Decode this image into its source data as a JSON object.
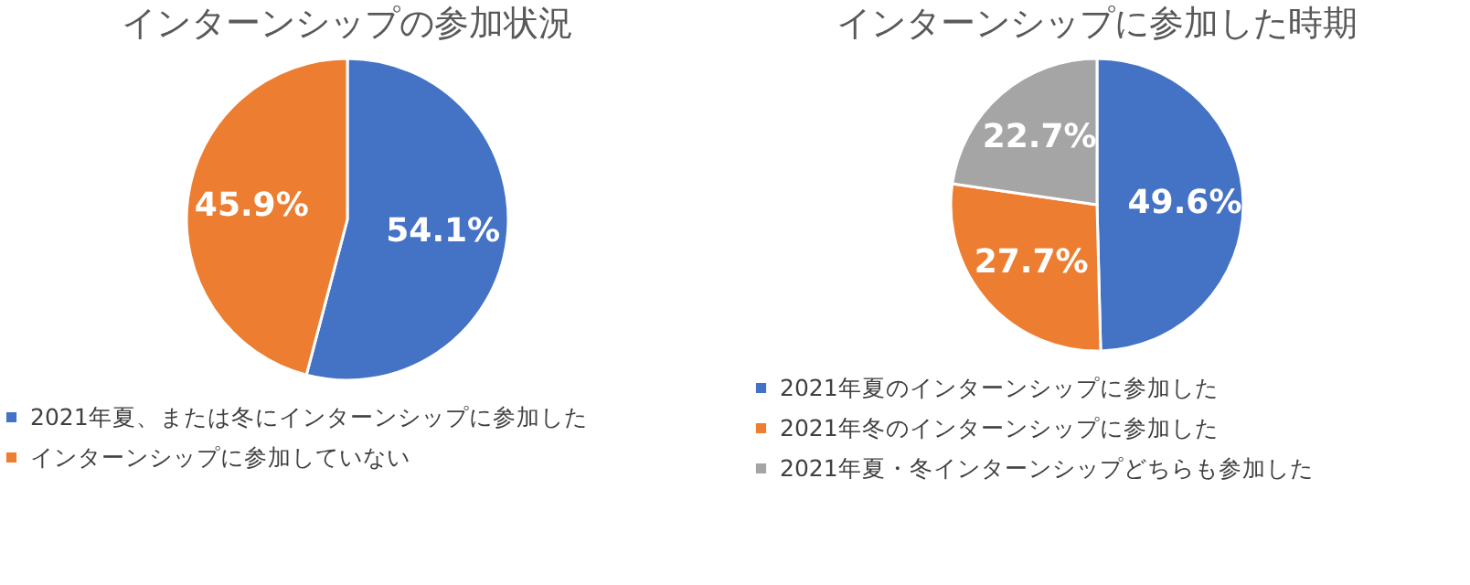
{
  "chart_data": [
    {
      "type": "pie",
      "title": "インターンシップの参加状況",
      "categories": [
        "2021年夏、または冬にインターンシップに参加した",
        "インターンシップに参加していない"
      ],
      "values": [
        54.1,
        45.9
      ],
      "colors": [
        "#4472c4",
        "#ed7d31"
      ],
      "value_labels": [
        "54.1%",
        "45.9%"
      ],
      "legend": "bottom left"
    },
    {
      "type": "pie",
      "title": "インターンシップに参加した時期",
      "categories": [
        "2021年夏のインターンシップに参加した",
        "2021年冬のインターンシップに参加した",
        "2021年夏・冬インターンシップどちらも参加した"
      ],
      "values": [
        49.6,
        27.7,
        22.7
      ],
      "colors": [
        "#4472c4",
        "#ed7d31",
        "#a5a5a5"
      ],
      "value_labels": [
        "49.6%",
        "27.7%",
        "22.7%"
      ],
      "legend": "bottom left"
    }
  ]
}
